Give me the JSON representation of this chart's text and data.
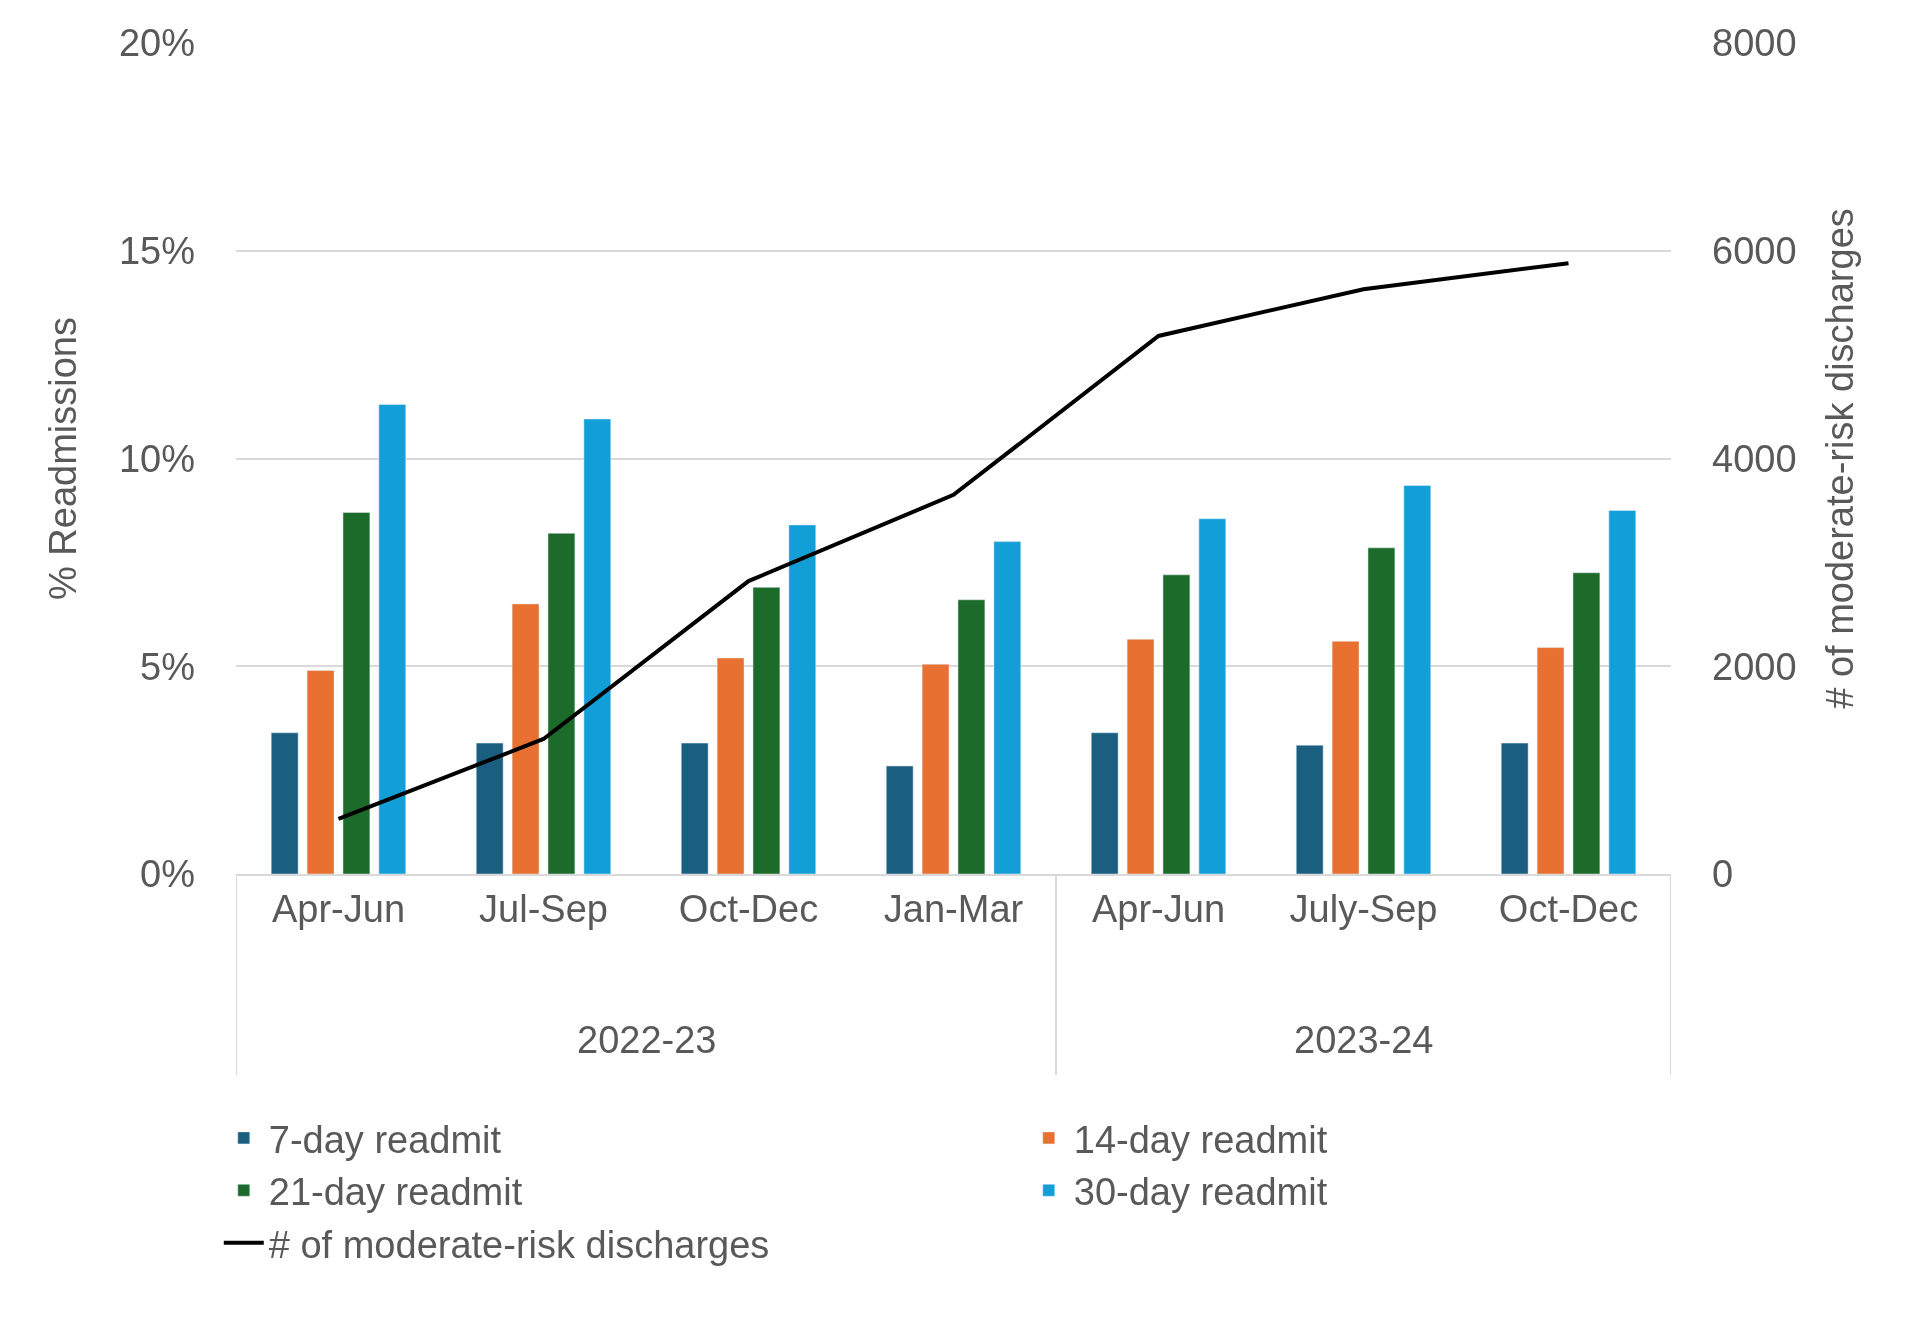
{
  "chart_data": {
    "type": "bar",
    "categories": [
      "Apr-Jun",
      "Jul-Sep",
      "Oct-Dec",
      "Jan-Mar",
      "Apr-Jun",
      "July-Sep",
      "Oct-Dec"
    ],
    "annotations": [
      "2022-23",
      "2023-24"
    ],
    "ylabel": "% Readmissions",
    "y2label": "# of moderate-risk discharges",
    "ylim": [
      0,
      20
    ],
    "yticks": [
      {
        "value": 0,
        "label": "0%"
      },
      {
        "value": 5,
        "label": "5%"
      },
      {
        "value": 10,
        "label": "10%"
      },
      {
        "value": 15,
        "label": "15%"
      },
      {
        "value": 20,
        "label": "20%"
      }
    ],
    "y2lim": [
      0,
      8000
    ],
    "y2ticks": [
      0,
      2000,
      4000,
      6000,
      8000
    ],
    "grid": "y",
    "legend": "bottom",
    "series": [
      {
        "name": "7-day readmit",
        "color": "#1a5e80",
        "values": [
          3.4,
          3.15,
          3.15,
          2.6,
          3.4,
          3.1,
          3.15
        ]
      },
      {
        "name": "14-day readmit",
        "color": "#e87030",
        "values": [
          4.9,
          6.5,
          5.2,
          5.05,
          5.65,
          5.6,
          5.45
        ]
      },
      {
        "name": "21-day readmit",
        "color": "#1d6b2a",
        "values": [
          8.7,
          8.2,
          6.9,
          6.6,
          7.2,
          7.85,
          7.25
        ]
      },
      {
        "name": "30-day readmit",
        "color": "#129fd8",
        "values": [
          11.3,
          10.95,
          8.4,
          8.0,
          8.55,
          9.35,
          8.75
        ]
      },
      {
        "name": "# of moderate-risk discharges",
        "color": "#000000",
        "type": "line",
        "axis": "y2",
        "values": [
          530,
          1300,
          2820,
          3650,
          5180,
          5630,
          5880
        ]
      }
    ]
  }
}
